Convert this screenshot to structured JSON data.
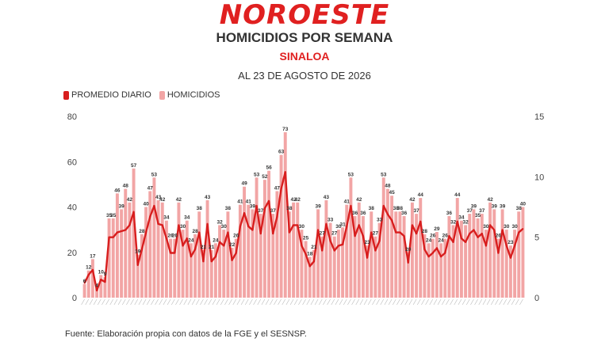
{
  "header": {
    "logo_text": "NOROESTE",
    "title": "HOMICIDIOS POR SEMANA",
    "subtitle": "SINALOA",
    "date": "AL 23 DE AGOSTO DE 2026"
  },
  "legend": {
    "daily_label": "PROMEDIO DIARIO",
    "weekly_label": "HOMICIDIOS"
  },
  "footer": {
    "source": "Fuente: Elaboración propia con datos de la FGE y el SESNSP."
  },
  "colors": {
    "bar": "#f2a5a5",
    "line": "#d81e1e",
    "brand": "#e02020"
  },
  "chart_data": {
    "type": "bar",
    "title": "HOMICIDIOS POR SEMANA",
    "xlabel": "",
    "ylabel": "",
    "ylim": [
      0,
      80
    ],
    "y2lim": [
      0,
      15
    ],
    "yticks": [
      0,
      20,
      40,
      60,
      80
    ],
    "y2ticks": [
      0,
      5,
      10,
      15
    ],
    "grid": false,
    "legend_position": "top-left",
    "series": [
      {
        "name": "HOMICIDIOS",
        "type": "bar",
        "axis": "left",
        "values": [
          6,
          12,
          17,
          4,
          10,
          9,
          35,
          35,
          46,
          39,
          48,
          42,
          57,
          19,
          28,
          40,
          47,
          53,
          43,
          42,
          34,
          26,
          26,
          42,
          30,
          34,
          24,
          28,
          38,
          21,
          43,
          21,
          24,
          32,
          30,
          38,
          22,
          26,
          41,
          49,
          41,
          39,
          53,
          37,
          52,
          56,
          37,
          47,
          63,
          73,
          38,
          42,
          42,
          30,
          25,
          18,
          21,
          39,
          27,
          43,
          33,
          27,
          30,
          31,
          41,
          53,
          36,
          42,
          36,
          23,
          38,
          27,
          33,
          53,
          48,
          45,
          38,
          38,
          36,
          20,
          42,
          37,
          44,
          28,
          24,
          26,
          29,
          24,
          26,
          36,
          32,
          44,
          34,
          32,
          37,
          39,
          35,
          37,
          30,
          42,
          39,
          26,
          39,
          30,
          23,
          30,
          38,
          40
        ],
        "labels": [
          "6",
          "12",
          "17",
          "4",
          "10",
          "9",
          "35",
          "35",
          "46",
          "39",
          "48",
          "42",
          "57",
          "19",
          "28",
          "40",
          "47",
          "53",
          "43",
          "42",
          "34",
          "26",
          "26",
          "42",
          "30",
          "34",
          "24",
          "28",
          "38",
          "21",
          "43",
          "21",
          "24",
          "32",
          "30",
          "38",
          "22",
          "26",
          "41",
          "49",
          "41",
          "39",
          "53",
          "37",
          "52",
          "56",
          "37",
          "47",
          "63",
          "73",
          "38",
          "42",
          "42",
          "30",
          "25",
          "18",
          "21",
          "39",
          "27",
          "43",
          "33",
          "27",
          "30",
          "31",
          "41",
          "53",
          "36",
          "42",
          "36",
          "23",
          "38",
          "27",
          "33",
          "53",
          "48",
          "45",
          "38",
          "38",
          "36",
          "20",
          "42",
          "37",
          "44",
          "28",
          "24",
          "26",
          "29",
          "24",
          "26",
          "36",
          "32",
          "44",
          "34",
          "32",
          "37",
          "39",
          "35",
          "37",
          "30",
          "42",
          "39",
          "26",
          "39",
          "30",
          "23",
          "30",
          "38",
          "40"
        ]
      },
      {
        "name": "PROMEDIO DIARIO",
        "type": "line",
        "axis": "right",
        "values": [
          1.2,
          1.9,
          2.3,
          0.6,
          1.5,
          1.3,
          5.0,
          5.0,
          5.4,
          5.5,
          5.6,
          6.0,
          7.1,
          2.7,
          4.0,
          5.4,
          6.7,
          7.6,
          6.1,
          6.0,
          4.9,
          3.7,
          3.7,
          6.0,
          4.3,
          4.9,
          3.4,
          4.0,
          5.4,
          3.0,
          6.1,
          3.0,
          3.4,
          4.6,
          4.3,
          5.4,
          3.1,
          3.7,
          5.9,
          7.0,
          5.9,
          5.6,
          7.6,
          5.3,
          7.4,
          8.0,
          5.3,
          6.7,
          9.0,
          10.4,
          5.4,
          6.0,
          6.0,
          4.3,
          3.6,
          2.6,
          3.0,
          5.6,
          3.9,
          6.1,
          4.7,
          3.9,
          4.3,
          4.4,
          5.9,
          7.6,
          5.1,
          6.0,
          5.1,
          3.3,
          5.4,
          3.9,
          4.7,
          7.6,
          6.9,
          6.4,
          5.4,
          5.4,
          5.1,
          2.9,
          6.0,
          5.3,
          6.3,
          4.0,
          3.4,
          3.7,
          4.1,
          3.4,
          3.7,
          5.1,
          4.6,
          6.3,
          4.9,
          4.6,
          5.3,
          5.6,
          5.0,
          5.3,
          4.3,
          6.0,
          5.6,
          3.7,
          5.6,
          4.3,
          3.3,
          4.3,
          5.4,
          5.7
        ]
      }
    ]
  }
}
